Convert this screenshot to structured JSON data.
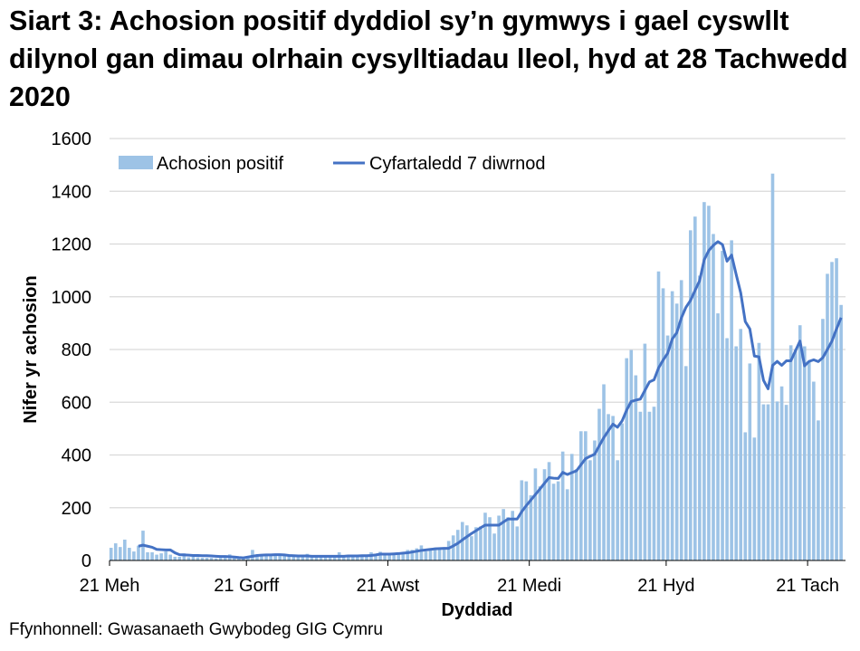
{
  "chart_data": {
    "type": "bar+line",
    "title": "Siart 3: Achosion positif dyddiol sy’n gymwys i gael cyswllt dilynol gan dimau olrhain cysylltiadau lleol, hyd at 28 Tachwedd 2020",
    "xlabel": "Dyddiad",
    "ylabel": "Nifer yr achosion",
    "ylim": [
      0,
      1600
    ],
    "yticks": [
      0,
      200,
      400,
      600,
      800,
      1000,
      1200,
      1400,
      1600
    ],
    "grid": true,
    "legend_position": "top-left",
    "x_ticks": [
      {
        "label": "21 Meh",
        "at": 0
      },
      {
        "label": "21 Gorff",
        "at": 30
      },
      {
        "label": "21 Awst",
        "at": 61
      },
      {
        "label": "21 Medi",
        "at": 92
      },
      {
        "label": "21 Hyd",
        "at": 122
      },
      {
        "label": "21 Tach",
        "at": 153
      }
    ],
    "series": [
      {
        "name": "Achosion positif",
        "type": "bar",
        "color": "#9dc3e6",
        "values": [
          48,
          65,
          51,
          79,
          48,
          34,
          56,
          113,
          31,
          31,
          22,
          27,
          34,
          22,
          14,
          14,
          27,
          12,
          14,
          12,
          10,
          10,
          10,
          8,
          10,
          12,
          23,
          10,
          8,
          6,
          10,
          40,
          16,
          24,
          24,
          20,
          18,
          22,
          20,
          16,
          14,
          18,
          22,
          25,
          16,
          14,
          14,
          12,
          14,
          16,
          31,
          14,
          16,
          22,
          18,
          16,
          18,
          31,
          22,
          33,
          29,
          29,
          24,
          24,
          24,
          40,
          40,
          46,
          57,
          34,
          46,
          49,
          46,
          49,
          74,
          95,
          116,
          146,
          133,
          92,
          126,
          129,
          181,
          164,
          102,
          170,
          195,
          164,
          188,
          129,
          304,
          300,
          247,
          349,
          281,
          346,
          373,
          291,
          300,
          413,
          270,
          404,
          346,
          490,
          490,
          380,
          455,
          575,
          668,
          555,
          548,
          380,
          520,
          767,
          798,
          702,
          564,
          822,
          564,
          583,
          1096,
          1032,
          853,
          1021,
          974,
          1063,
          737,
          1252,
          1304,
          1080,
          1359,
          1345,
          1238,
          937,
          1174,
          843,
          1214,
          812,
          878,
          486,
          747,
          466,
          825,
          592,
          592,
          1467,
          603,
          660,
          590,
          816,
          800,
          892,
          812,
          755,
          678,
          531,
          916,
          1087,
          1132,
          1146,
          969
        ]
      },
      {
        "name": "Cyfartaledd 7 diwrnod",
        "type": "line",
        "color": "#4472c4",
        "values": [
          null,
          null,
          null,
          null,
          null,
          null,
          54,
          58,
          54,
          50,
          42,
          41,
          40,
          40,
          29,
          22,
          21,
          20,
          19,
          19,
          18,
          18,
          17,
          16,
          15,
          15,
          14,
          13,
          11,
          10,
          13,
          16,
          19,
          20,
          21,
          21,
          22,
          22,
          21,
          19,
          18,
          17,
          17,
          17,
          16,
          16,
          16,
          16,
          16,
          16,
          16,
          16,
          17,
          17,
          17,
          18,
          18,
          19,
          21,
          24,
          24,
          24,
          25,
          26,
          28,
          29,
          32,
          35,
          38,
          40,
          42,
          44,
          45,
          46,
          46,
          55,
          65,
          78,
          90,
          102,
          113,
          124,
          134,
          134,
          134,
          134,
          146,
          157,
          157,
          157,
          185,
          208,
          229,
          250,
          271,
          293,
          314,
          312,
          311,
          334,
          326,
          333,
          340,
          363,
          386,
          395,
          403,
          435,
          466,
          492,
          517,
          505,
          529,
          570,
          603,
          608,
          612,
          645,
          677,
          685,
          730,
          760,
          786,
          840,
          864,
          920,
          960,
          986,
          1024,
          1061,
          1140,
          1175,
          1195,
          1209,
          1198,
          1135,
          1158,
          1085,
          1015,
          906,
          878,
          775,
          772,
          683,
          651,
          740,
          755,
          740,
          757,
          757,
          795,
          832,
          738,
          755,
          761,
          754,
          769,
          800,
          832,
          878,
          921
        ]
      }
    ]
  },
  "source": "Ffynhonnell: Gwasanaeth Gwybodeg GIG Cymru"
}
